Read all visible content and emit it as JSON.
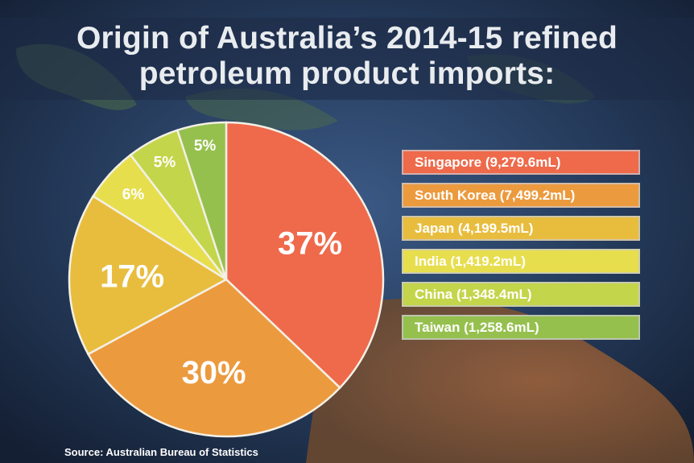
{
  "title_lines": [
    "Origin of Australia’s 2014-15 refined",
    "petroleum product imports:"
  ],
  "source": "Source: Australian Bureau of Statistics",
  "chart_data": {
    "type": "pie",
    "title": "Origin of Australia’s 2014-15 refined petroleum product imports:",
    "slices": [
      {
        "label": "Singapore (9,279.6mL)",
        "value": 9279.6,
        "percent_label": "37%",
        "color": "#ee6a4b"
      },
      {
        "label": "South Korea (7,499.2mL)",
        "value": 7499.2,
        "percent_label": "30%",
        "color": "#ec9a3e"
      },
      {
        "label": "Japan (4,199.5mL)",
        "value": 4199.5,
        "percent_label": "17%",
        "color": "#e8bd3e"
      },
      {
        "label": "India (1,419.2mL)",
        "value": 1419.2,
        "percent_label": "6%",
        "color": "#e7de4e"
      },
      {
        "label": "China (1,348.4mL)",
        "value": 1348.4,
        "percent_label": "5%",
        "color": "#c3d54a"
      },
      {
        "label": "Taiwan (1,258.6mL)",
        "value": 1258.6,
        "percent_label": "5%",
        "color": "#95c04e"
      }
    ],
    "legend_position": "right",
    "start_angle_deg": 0,
    "direction": "clockwise"
  }
}
